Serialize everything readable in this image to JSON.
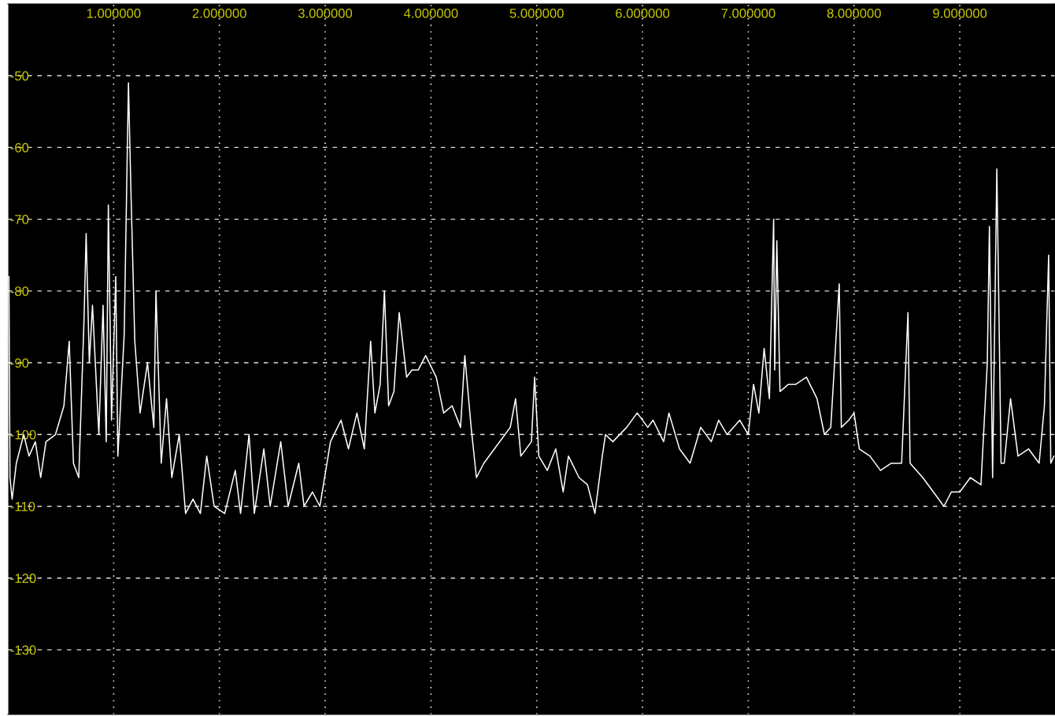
{
  "chart_data": {
    "type": "line",
    "x": [
      0.01,
      0.02,
      0.04,
      0.08,
      0.15,
      0.2,
      0.26,
      0.31,
      0.36,
      0.45,
      0.53,
      0.58,
      0.62,
      0.67,
      0.72,
      0.74,
      0.77,
      0.8,
      0.86,
      0.9,
      0.93,
      0.95,
      0.98,
      1.02,
      1.04,
      1.1,
      1.14,
      1.16,
      1.2,
      1.25,
      1.32,
      1.38,
      1.4,
      1.45,
      1.5,
      1.55,
      1.62,
      1.68,
      1.75,
      1.82,
      1.88,
      1.95,
      2.05,
      2.15,
      2.2,
      2.28,
      2.33,
      2.42,
      2.48,
      2.58,
      2.65,
      2.75,
      2.8,
      2.88,
      2.95,
      3.05,
      3.15,
      3.22,
      3.3,
      3.37,
      3.43,
      3.47,
      3.52,
      3.56,
      3.6,
      3.65,
      3.7,
      3.77,
      3.82,
      3.88,
      3.95,
      4.05,
      4.12,
      4.2,
      4.28,
      4.32,
      4.38,
      4.43,
      4.5,
      4.6,
      4.75,
      4.8,
      4.85,
      4.95,
      4.98,
      5.02,
      5.1,
      5.18,
      5.25,
      5.3,
      5.4,
      5.48,
      5.55,
      5.62,
      5.65,
      5.72,
      5.85,
      5.95,
      6.05,
      6.1,
      6.2,
      6.25,
      6.35,
      6.45,
      6.55,
      6.65,
      6.72,
      6.8,
      6.92,
      7.0,
      7.05,
      7.1,
      7.15,
      7.2,
      7.24,
      7.25,
      7.27,
      7.3,
      7.38,
      7.45,
      7.55,
      7.65,
      7.72,
      7.78,
      7.86,
      7.88,
      7.95,
      8.0,
      8.05,
      8.15,
      8.25,
      8.35,
      8.45,
      8.51,
      8.53,
      8.65,
      8.75,
      8.85,
      8.92,
      9.0,
      9.1,
      9.2,
      9.26,
      9.28,
      9.31,
      9.35,
      9.37,
      9.39,
      9.42,
      9.48,
      9.55,
      9.65,
      9.75,
      9.8,
      9.84,
      9.86,
      9.89
    ],
    "series": [
      {
        "color": "#ffffff",
        "values": [
          -78,
          -106,
          -109,
          -104,
          -100,
          -103,
          -101,
          -106,
          -101,
          -100,
          -96,
          -87,
          -104,
          -106,
          -84,
          -72,
          -90,
          -82,
          -100,
          -82,
          -101,
          -68,
          -98,
          -78,
          -103,
          -86,
          -51,
          -64,
          -87,
          -97,
          -90,
          -99,
          -80,
          -104,
          -95,
          -106,
          -100,
          -111,
          -109,
          -111,
          -103,
          -110,
          -111,
          -105,
          -111,
          -100,
          -111,
          -102,
          -110,
          -101,
          -110,
          -104,
          -110,
          -108,
          -110,
          -101,
          -98,
          -102,
          -97,
          -102,
          -87,
          -97,
          -93,
          -80,
          -96,
          -94,
          -83,
          -92,
          -91,
          -91,
          -89,
          -92,
          -97,
          -96,
          -99,
          -89,
          -99,
          -106,
          -104,
          -102,
          -99,
          -95,
          -103,
          -101,
          -92,
          -103,
          -105,
          -102,
          -108,
          -103,
          -106,
          -107,
          -111,
          -103,
          -100,
          -101,
          -99,
          -97,
          -99,
          -98,
          -101,
          -97,
          -102,
          -104,
          -99,
          -101,
          -98,
          -100,
          -98,
          -100,
          -93,
          -97,
          -88,
          -95,
          -70,
          -91,
          -73,
          -94,
          -93,
          -93,
          -92,
          -95,
          -100,
          -99,
          -79,
          -99,
          -98,
          -97,
          -102,
          -103,
          -105,
          -104,
          -104,
          -83,
          -104,
          -106,
          -108,
          -110,
          -108,
          -108,
          -106,
          -107,
          -90,
          -71,
          -106,
          -63,
          -83,
          -104,
          -104,
          -95,
          -103,
          -102,
          -104,
          -96,
          -75,
          -104,
          -103
        ]
      }
    ],
    "xlim": [
      0,
      9.9
    ],
    "ylim": [
      -139,
      -40
    ],
    "xticks": [
      {
        "value": 1,
        "label": "1.000000"
      },
      {
        "value": 2,
        "label": "2.000000"
      },
      {
        "value": 3,
        "label": "3.000000"
      },
      {
        "value": 4,
        "label": "4.000000"
      },
      {
        "value": 5,
        "label": "5.000000"
      },
      {
        "value": 6,
        "label": "6.000000"
      },
      {
        "value": 7,
        "label": "7.000000"
      },
      {
        "value": 8,
        "label": "8.000000"
      },
      {
        "value": 9,
        "label": "9.000000"
      }
    ],
    "yticks": [
      -50,
      -60,
      -70,
      -80,
      -90,
      -100,
      -110,
      -120,
      -130
    ],
    "grid": true,
    "line_style": "solid"
  }
}
